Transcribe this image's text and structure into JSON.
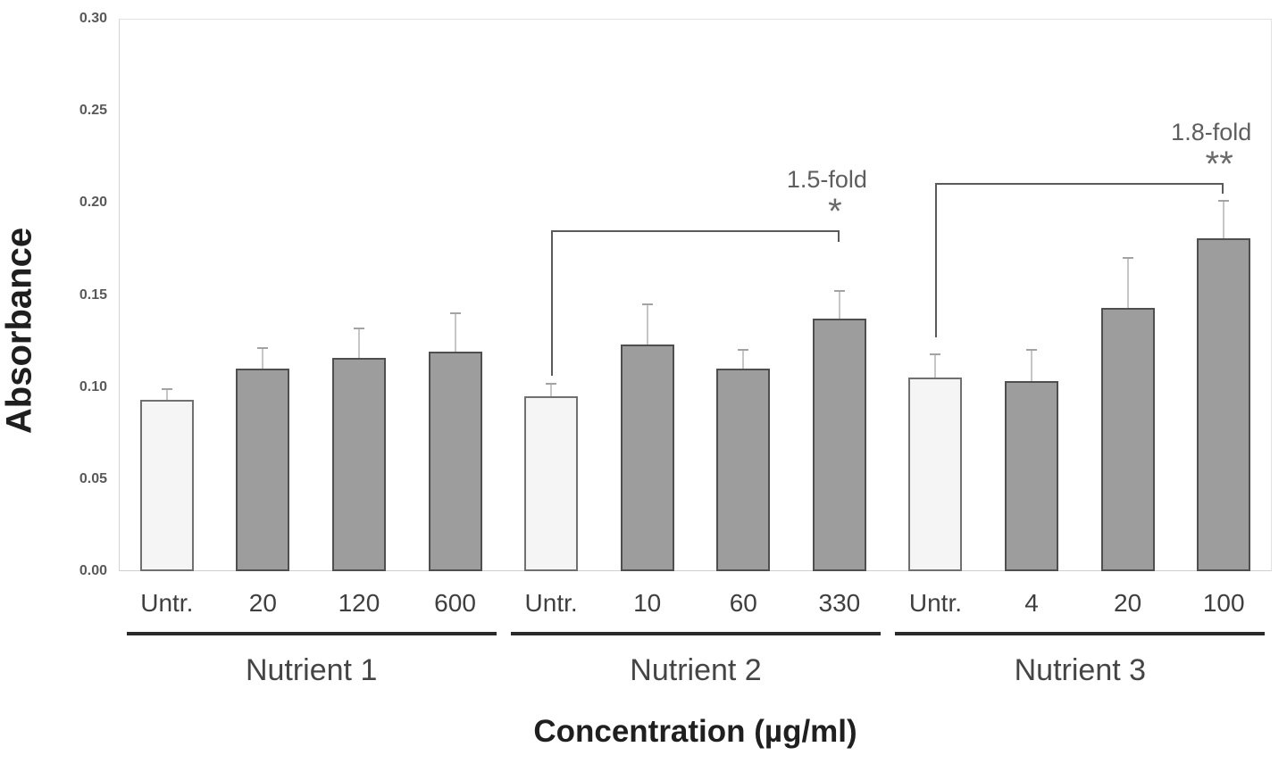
{
  "chart_data": {
    "type": "bar",
    "title": "",
    "ylabel": "Absorbance",
    "xlabel": "Concentration (µg/ml)",
    "ylim": [
      0,
      0.3
    ],
    "grid": false,
    "legend": "none",
    "yticks": [
      "0.00",
      "0.05",
      "0.10",
      "0.15",
      "0.20",
      "0.25",
      "0.30"
    ],
    "groups": [
      {
        "label": "Nutrient 1",
        "bars": [
          {
            "category": "Untr.",
            "value": 0.093,
            "error": 0.006,
            "style": "untreated"
          },
          {
            "category": "20",
            "value": 0.11,
            "error": 0.011,
            "style": "treated"
          },
          {
            "category": "120",
            "value": 0.116,
            "error": 0.016,
            "style": "treated"
          },
          {
            "category": "600",
            "value": 0.119,
            "error": 0.021,
            "style": "treated"
          }
        ]
      },
      {
        "label": "Nutrient 2",
        "bars": [
          {
            "category": "Untr.",
            "value": 0.095,
            "error": 0.007,
            "style": "untreated"
          },
          {
            "category": "10",
            "value": 0.123,
            "error": 0.022,
            "style": "treated"
          },
          {
            "category": "60",
            "value": 0.11,
            "error": 0.01,
            "style": "treated"
          },
          {
            "category": "330",
            "value": 0.137,
            "error": 0.015,
            "style": "treated"
          }
        ]
      },
      {
        "label": "Nutrient 3",
        "bars": [
          {
            "category": "Untr.",
            "value": 0.105,
            "error": 0.013,
            "style": "untreated"
          },
          {
            "category": "4",
            "value": 0.103,
            "error": 0.017,
            "style": "treated"
          },
          {
            "category": "20",
            "value": 0.143,
            "error": 0.027,
            "style": "treated"
          },
          {
            "category": "100",
            "value": 0.181,
            "error": 0.02,
            "style": "treated"
          }
        ]
      }
    ],
    "annotations": [
      {
        "label": "1.5-fold",
        "stars": "*",
        "from_bar": 4,
        "to_bar": 7,
        "bracket_value": 0.185,
        "left_leg_bottom_value": 0.106,
        "right_leg_bottom_value": 0.179
      },
      {
        "label": "1.8-fold",
        "stars": "**",
        "from_bar": 8,
        "to_bar": 11,
        "bracket_value": 0.211,
        "left_leg_bottom_value": 0.127,
        "right_leg_bottom_value": 0.205
      }
    ],
    "colors": {
      "untreated_fill": "#f5f5f5",
      "untreated_border": "#707070",
      "treated_fill": "#9d9d9d",
      "treated_border": "#4f4f4f",
      "error_line": "#c6c6c6",
      "error_cap": "#a3a3a3",
      "bracket": "#5a5a5a",
      "underline": "#2a2a2a"
    }
  }
}
